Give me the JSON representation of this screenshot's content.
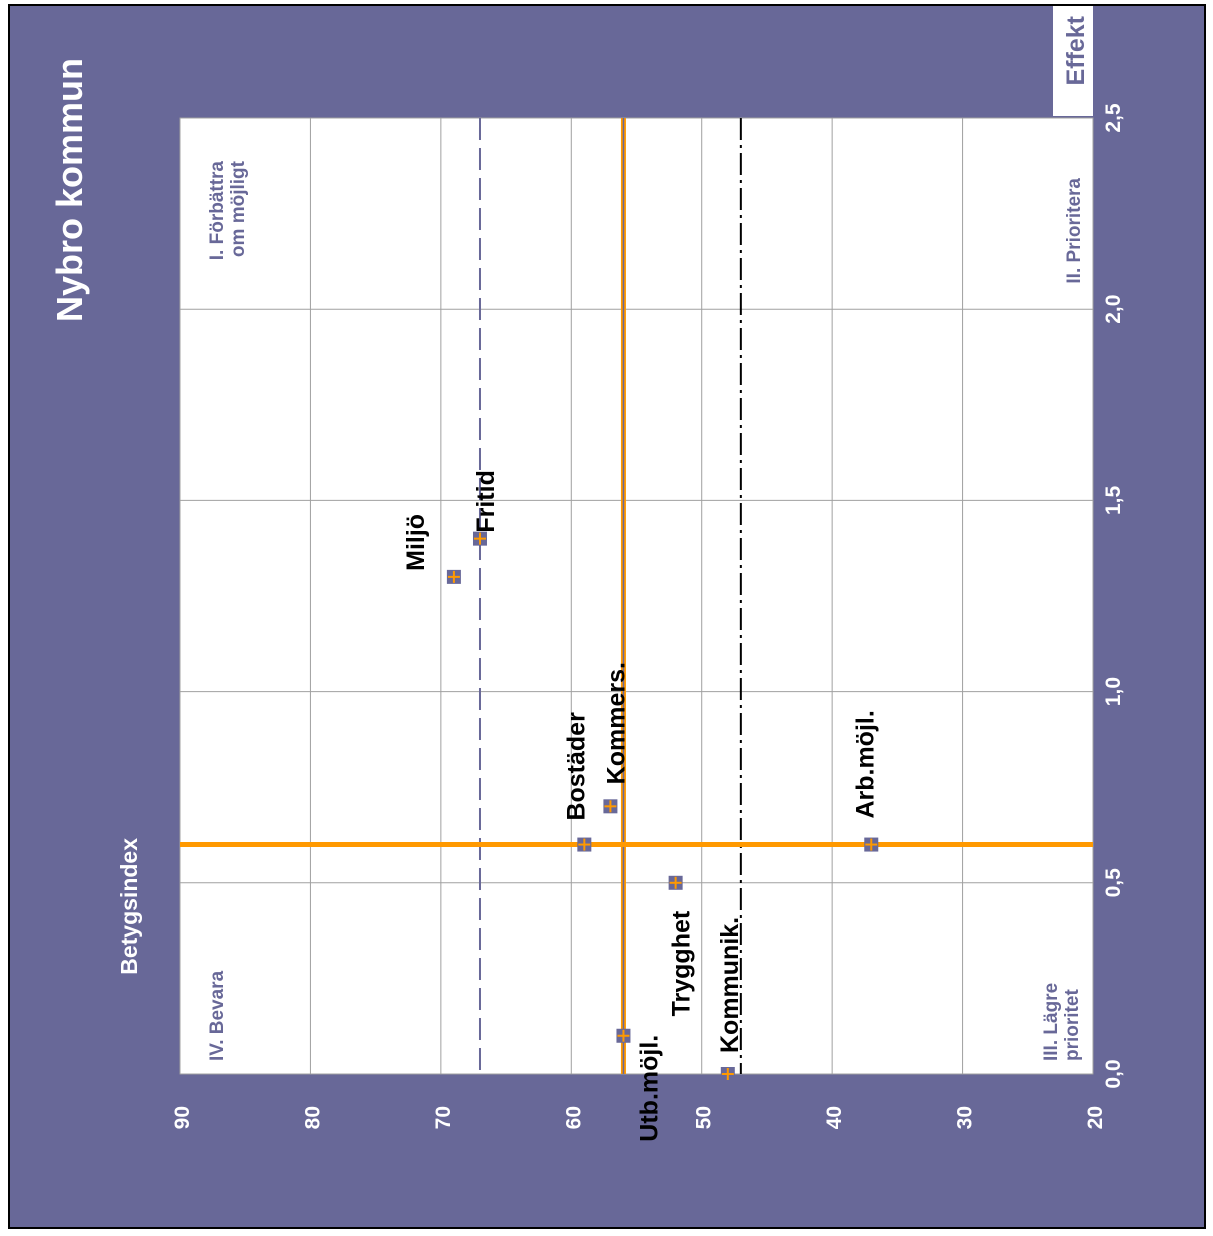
{
  "chart_data": {
    "type": "scatter",
    "orientation": "rotated-90-ccw",
    "title": "Nybro kommun",
    "xlabel": "Effekt",
    "ylabel": "Betygsindex",
    "xlim": [
      0,
      2.5
    ],
    "ylim": [
      20,
      90
    ],
    "x_ticks": [
      "0,0",
      "0,5",
      "1,0",
      "1,5",
      "2,0",
      "2,5"
    ],
    "x_tick_values": [
      0,
      0.5,
      1.0,
      1.5,
      2.0,
      2.5
    ],
    "y_ticks": [
      "20",
      "30",
      "40",
      "50",
      "60",
      "70",
      "80",
      "90"
    ],
    "y_tick_values": [
      20,
      30,
      40,
      50,
      60,
      70,
      80,
      90
    ],
    "grid": true,
    "quadrants": {
      "q1": [
        "I. Förbättra",
        "om möjligt"
      ],
      "q2": [
        "II. Prioritera"
      ],
      "q3": [
        "III. Lägre",
        "prioritet"
      ],
      "q4": [
        "IV. Bevara"
      ]
    },
    "points": [
      {
        "label": "Fritid",
        "x": 1.4,
        "y": 67
      },
      {
        "label": "Miljö",
        "x": 1.3,
        "y": 69
      },
      {
        "label": "Bostäder",
        "x": 0.6,
        "y": 59
      },
      {
        "label": "Kommers.",
        "x": 0.7,
        "y": 57
      },
      {
        "label": "Arb.möjl.",
        "x": 0.6,
        "y": 37
      },
      {
        "label": "Trygghet",
        "x": 0.5,
        "y": 52
      },
      {
        "label": "Utb.möjl.",
        "x": 0.1,
        "y": 56
      },
      {
        "label": "Kommunik.",
        "x": 0.0,
        "y": 48
      }
    ],
    "reference_lines": {
      "mean_effect": 0.6,
      "mean_index": 56,
      "upper_dashed": 67,
      "lower_dashed": 47
    },
    "colors": {
      "background": "#686898",
      "plot_area": "#ffffff",
      "accent": "#FF9900",
      "marker": "#686898",
      "text_light": "#ffffff",
      "quadrant_text": "#686898",
      "label_text": "#000000"
    }
  }
}
